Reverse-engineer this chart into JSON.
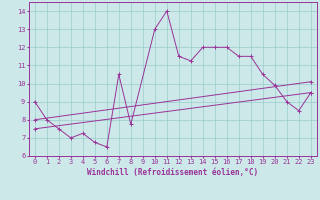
{
  "xlabel": "Windchill (Refroidissement éolien,°C)",
  "bg_color": "#cce8e8",
  "line_color": "#993399",
  "xlim": [
    -0.5,
    23.5
  ],
  "ylim": [
    6,
    14.5
  ],
  "xticks": [
    0,
    1,
    2,
    3,
    4,
    5,
    6,
    7,
    8,
    9,
    10,
    11,
    12,
    13,
    14,
    15,
    16,
    17,
    18,
    19,
    20,
    21,
    22,
    23
  ],
  "yticks": [
    6,
    7,
    8,
    9,
    10,
    11,
    12,
    13,
    14
  ],
  "series1_x": [
    0,
    1,
    2,
    3,
    4,
    5,
    6,
    7,
    8,
    10,
    11,
    12,
    13,
    14,
    15,
    16,
    17,
    18,
    19,
    20,
    21,
    22,
    23
  ],
  "series1_y": [
    9.0,
    8.0,
    7.5,
    7.0,
    7.25,
    6.75,
    6.5,
    10.5,
    7.75,
    13.0,
    14.0,
    11.5,
    11.25,
    12.0,
    12.0,
    12.0,
    11.5,
    11.5,
    10.5,
    9.9,
    9.0,
    8.5,
    9.5
  ],
  "series2_x": [
    0,
    23
  ],
  "series2_y": [
    7.5,
    9.5
  ],
  "series3_x": [
    0,
    23
  ],
  "series3_y": [
    8.0,
    10.1
  ],
  "grid_color": "#99cccc",
  "label_fontsize": 5.5,
  "tick_fontsize": 5.0
}
